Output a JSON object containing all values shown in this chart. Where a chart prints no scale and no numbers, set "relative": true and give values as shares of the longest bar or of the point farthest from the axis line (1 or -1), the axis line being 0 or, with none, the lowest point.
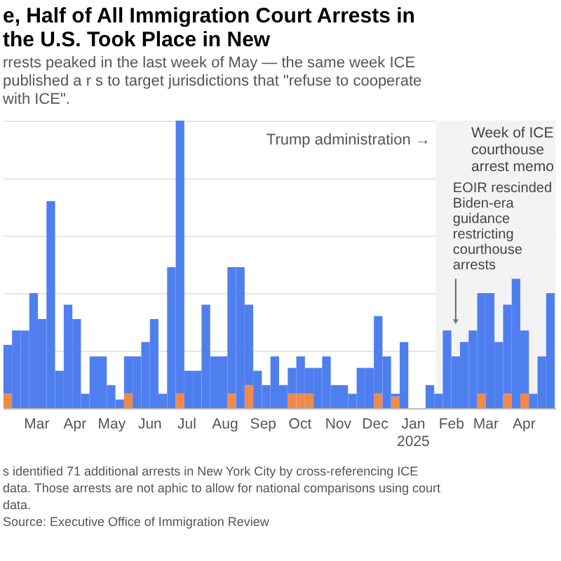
{
  "chart_data": {
    "type": "bar",
    "title": "e, Half of All Immigration Court Arrests in the U.S. Took Place in New",
    "subtitle": "rrests peaked in the last week of May — the same week ICE published a r s to target jurisdictions that \"refuse to cooperate with ICE\".",
    "relative": true,
    "stacked": true,
    "grid": "y",
    "tick_labels": "x",
    "xlim": [
      "2024-02-03",
      "2025-04-27"
    ],
    "xticks": [
      {
        "value": "2024-03-01",
        "label": "Mar"
      },
      {
        "value": "2024-04-01",
        "label": "Apr"
      },
      {
        "value": "2024-05-01",
        "label": "May"
      },
      {
        "value": "2024-06-01",
        "label": "Jun"
      },
      {
        "value": "2024-07-01",
        "label": "Jul"
      },
      {
        "value": "2024-08-01",
        "label": "Aug"
      },
      {
        "value": "2024-09-01",
        "label": "Sep"
      },
      {
        "value": "2024-10-01",
        "label": "Oct"
      },
      {
        "value": "2024-11-01",
        "label": "Nov"
      },
      {
        "value": "2024-12-01",
        "label": "Dec"
      },
      {
        "value": "2025-01-01",
        "label": "Jan 2025"
      },
      {
        "value": "2025-02-01",
        "label": "Feb"
      },
      {
        "value": "2025-03-01",
        "label": "Mar"
      },
      {
        "value": "2025-04-01",
        "label": "Apr"
      }
    ],
    "x": [
      "2024-02-07",
      "2024-02-14",
      "2024-02-21",
      "2024-02-28",
      "2024-03-06",
      "2024-03-13",
      "2024-03-20",
      "2024-03-27",
      "2024-04-03",
      "2024-04-10",
      "2024-04-17",
      "2024-04-24",
      "2024-05-01",
      "2024-05-08",
      "2024-05-15",
      "2024-05-22",
      "2024-05-29",
      "2024-06-05",
      "2024-06-12",
      "2024-06-19",
      "2024-06-26",
      "2024-07-03",
      "2024-07-10",
      "2024-07-17",
      "2024-07-24",
      "2024-07-31",
      "2024-08-07",
      "2024-08-14",
      "2024-08-21",
      "2024-08-28",
      "2024-09-04",
      "2024-09-11",
      "2024-09-18",
      "2024-09-25",
      "2024-10-02",
      "2024-10-09",
      "2024-10-16",
      "2024-10-23",
      "2024-10-30",
      "2024-11-06",
      "2024-11-13",
      "2024-11-20",
      "2024-11-27",
      "2024-12-04",
      "2024-12-11",
      "2024-12-18",
      "2024-12-25",
      "2025-01-01",
      "2025-01-08",
      "2025-01-15",
      "2025-01-22",
      "2025-01-29",
      "2025-02-05",
      "2025-02-12",
      "2025-02-19",
      "2025-02-26",
      "2025-03-05",
      "2025-03-12",
      "2025-03-19",
      "2025-03-26",
      "2025-04-02",
      "2025-04-09",
      "2025-04-16",
      "2025-04-23"
    ],
    "series": [
      {
        "color": "#f08a4b",
        "values": [
          0.05,
          0,
          0,
          0,
          0,
          0,
          0,
          0,
          0,
          0,
          0,
          0,
          0,
          0,
          0.05,
          0,
          0,
          0,
          0,
          0,
          0.05,
          0,
          0,
          0,
          0,
          0,
          0.05,
          0,
          0.08,
          0,
          0,
          0,
          0,
          0.05,
          0.05,
          0.05,
          0,
          0,
          0,
          0,
          0,
          0,
          0,
          0.05,
          0,
          0.04,
          0,
          0,
          0,
          0,
          0,
          0,
          0,
          0,
          0,
          0.05,
          0,
          0,
          0.05,
          0,
          0.05,
          0,
          0,
          0
        ]
      },
      {
        "color": "#4f7fef",
        "values": [
          0.17,
          0.27,
          0.27,
          0.4,
          0.31,
          0.72,
          0.13,
          0.36,
          0.31,
          0.05,
          0.18,
          0.18,
          0.08,
          0.03,
          0.13,
          0.18,
          0.23,
          0.31,
          0.05,
          0.49,
          0.95,
          0.13,
          0.13,
          0.36,
          0.18,
          0.18,
          0.44,
          0.49,
          0.28,
          0.13,
          0.08,
          0.18,
          0.08,
          0.09,
          0.13,
          0.09,
          0.14,
          0.18,
          0.08,
          0.08,
          0.05,
          0.14,
          0.14,
          0.27,
          0.18,
          0.01,
          0.23,
          0,
          0,
          0.08,
          0.05,
          0.27,
          0.18,
          0.23,
          0.27,
          0.35,
          0.4,
          0.23,
          0.31,
          0.45,
          0.22,
          0.05,
          0.18,
          0.4
        ]
      }
    ],
    "bands": [
      {
        "axis": "x",
        "from": "2025-01-20",
        "to": "2025-04-27",
        "label": "Trump administration →",
        "color": "#f3f3f3"
      }
    ],
    "annotations": [
      {
        "text": "EOIR rescinded Biden-era guidance restricting courthouse arrests",
        "x": "2025-02-05",
        "y": 0.27
      },
      "Week of ICE courthouse arrest memo",
      "s identified 71 additional arrests in New York City by cross-referencing ICE data. Those arrests are not aphic to allow for national comparisons using court data.",
      "Source: Executive Office of Immigration Review"
    ]
  }
}
